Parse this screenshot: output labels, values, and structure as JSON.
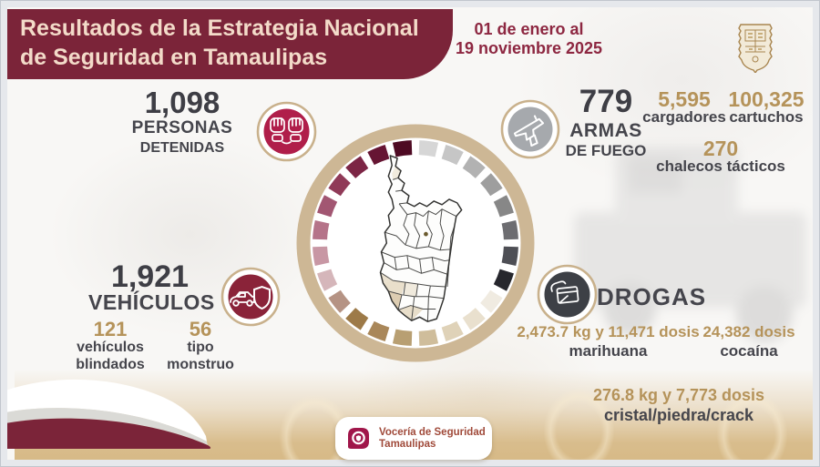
{
  "header": {
    "title_line1": "Resultados de la Estrategia Nacional",
    "title_line2": "de Seguridad en Tamaulipas",
    "date_line1": "01 de enero al",
    "date_line2": "19 noviembre 2025",
    "emblem": "tamaulipas-coat-of-arms"
  },
  "stats": {
    "detenidas": {
      "value": "1,098",
      "label1": "PERSONAS",
      "label2": "DETENIDAS",
      "icon": "handcuffs-icon"
    },
    "armas": {
      "value": "779",
      "label1": "ARMAS",
      "label2": "DE FUEGO",
      "icon": "pistol-icon"
    },
    "cargadores": {
      "value": "5,595",
      "label": "cargadores"
    },
    "cartuchos": {
      "value": "100,325",
      "label": "cartuchos"
    },
    "chalecos": {
      "value": "270",
      "label": "chalecos tácticos"
    },
    "vehiculos": {
      "value": "1,921",
      "label": "VEHÍCULOS",
      "icon": "car-shield-icon"
    },
    "blindados": {
      "value": "121",
      "label1": "vehículos",
      "label2": "blindados"
    },
    "monstruo": {
      "value": "56",
      "label1": "tipo",
      "label2": "monstruo"
    }
  },
  "drogas": {
    "label": "DROGAS",
    "icon": "drug-package-icon",
    "marihuana": {
      "value": "2,473.7 kg y 11,471 dosis",
      "label": "marihuana"
    },
    "cocaina": {
      "value": "24,382 dosis",
      "label": "cocaína"
    },
    "cristal": {
      "value": "276.8 kg y 7,773 dosis",
      "label": "cristal/piedra/crack"
    }
  },
  "footer": {
    "org_line1": "Vocería de Seguridad",
    "org_line2": "Tamaulipas"
  },
  "map": {
    "name": "tamaulipas-state-map"
  },
  "ring": {
    "segments": [
      "#d6d6d6",
      "#c6c6c6",
      "#b2b2b2",
      "#9e9e9e",
      "#878787",
      "#6d6d71",
      "#4e4f55",
      "#26272d",
      "#f0ebe1",
      "#e9e0ce",
      "#dfd2b8",
      "#cfbd9b",
      "#b89f72",
      "#a9875a",
      "#9d7a48",
      "#b59384",
      "#d5b6ba",
      "#c897a4",
      "#b57389",
      "#a25672",
      "#903a58",
      "#7c2545",
      "#661533",
      "#4e0a23"
    ]
  },
  "colors": {
    "banner_maroon": "#7b2439",
    "accent_tan": "#b5935a",
    "crimson_badge": "#b01e4a",
    "maroon_badge": "#8a2339",
    "gray_badge": "#a6a9ad",
    "dark_badge": "#3d4046",
    "ring_tan": "#cdb795",
    "text_dark": "#3e3e45",
    "band_tan": "#d6b884",
    "logo_maroon": "#a0164a",
    "footer_text": "#a04a3a"
  }
}
